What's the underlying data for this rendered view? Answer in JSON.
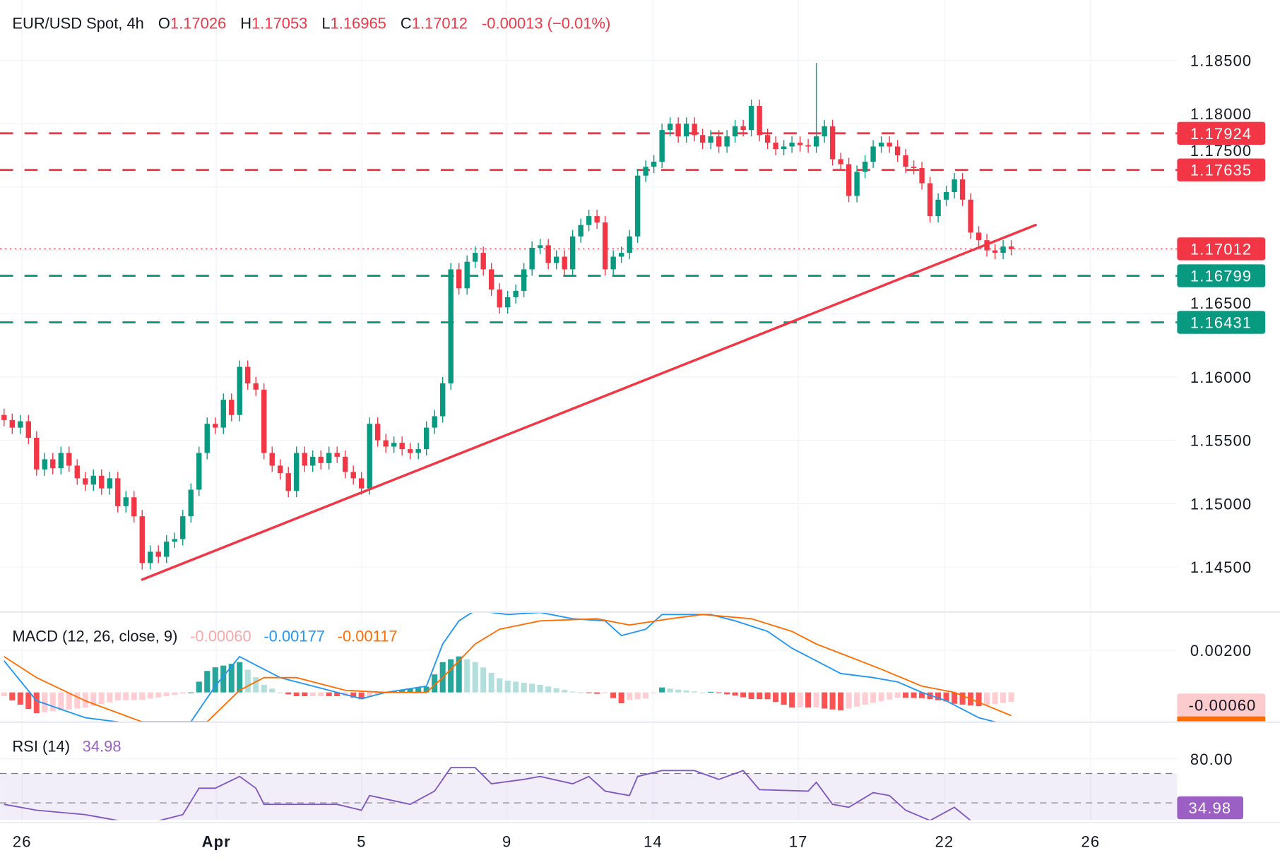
{
  "header": {
    "symbol": "EUR/USD Spot, 4h",
    "o_label": "O",
    "o_value": "1.17026",
    "h_label": "H",
    "h_value": "1.17053",
    "l_label": "L",
    "l_value": "1.16965",
    "c_label": "C",
    "c_value": "1.17012",
    "change": "-0.00013 (−0.01%)"
  },
  "colors": {
    "up": "#089981",
    "down": "#F23645",
    "macd": "#2196F3",
    "signal": "#FF6D00",
    "rsi": "#7E57C2",
    "grid": "#F0F3FA",
    "separator": "#E0E3EB",
    "text": "#131722"
  },
  "chart_data": [
    {
      "type": "candlestick",
      "title": "EUR/USD Spot, 4h",
      "ylim": [
        1.1415,
        1.1875
      ],
      "y_ticks": [
        "1.18500",
        "1.18000",
        "1.17500",
        "1.16500",
        "1.16000",
        "1.15500",
        "1.15000",
        "1.14500"
      ],
      "x_ticks": [
        "26",
        "Apr",
        "5",
        "9",
        "14",
        "17",
        "22",
        "26"
      ],
      "grid": true,
      "close": [
        1.1566,
        1.156,
        1.1565,
        1.1552,
        1.1527,
        1.1535,
        1.1528,
        1.154,
        1.153,
        1.152,
        1.1515,
        1.1522,
        1.1512,
        1.152,
        1.1498,
        1.1505,
        1.149,
        1.1453,
        1.1462,
        1.1458,
        1.147,
        1.1472,
        1.149,
        1.1511,
        1.154,
        1.1563,
        1.156,
        1.1582,
        1.157,
        1.1608,
        1.1595,
        1.159,
        1.154,
        1.153,
        1.1524,
        1.151,
        1.154,
        1.153,
        1.1537,
        1.1532,
        1.154,
        1.1537,
        1.1525,
        1.152,
        1.1512,
        1.1563,
        1.155,
        1.1545,
        1.1548,
        1.1543,
        1.154,
        1.1543,
        1.156,
        1.1569,
        1.1595,
        1.1685,
        1.167,
        1.1691,
        1.1698,
        1.1685,
        1.1669,
        1.1655,
        1.1663,
        1.1668,
        1.1685,
        1.1702,
        1.1704,
        1.169,
        1.1695,
        1.1685,
        1.1711,
        1.172,
        1.1727,
        1.1722,
        1.1685,
        1.1695,
        1.1698,
        1.1711,
        1.1759,
        1.1766,
        1.177,
        1.1795,
        1.18,
        1.179,
        1.18,
        1.1791,
        1.1785,
        1.179,
        1.1782,
        1.179,
        1.1798,
        1.1795,
        1.1814,
        1.1791,
        1.1785,
        1.178,
        1.1782,
        1.1785,
        1.1783,
        1.1782,
        1.179,
        1.1798,
        1.1772,
        1.1768,
        1.1743,
        1.1762,
        1.177,
        1.1782,
        1.1785,
        1.1782,
        1.1775,
        1.1766,
        1.1765,
        1.1753,
        1.1727,
        1.174,
        1.1746,
        1.1756,
        1.174,
        1.1714,
        1.1708,
        1.17,
        1.1698,
        1.1703,
        1.1701
      ],
      "first_open": 1.157,
      "notable_high": {
        "bar": 100,
        "price": 1.1848
      },
      "trendline": {
        "from": {
          "bar": 17,
          "price": 1.144
        },
        "to": {
          "bar": 127,
          "price": 1.172
        },
        "color": "#F23645"
      },
      "levels": [
        {
          "label": "1.17924",
          "price": 1.17924,
          "color": "#F23645",
          "style": "dashed"
        },
        {
          "label": "1.17635",
          "price": 1.17635,
          "color": "#F23645",
          "style": "dashed"
        },
        {
          "label": "1.17012",
          "price": 1.17012,
          "color": "#F23645",
          "style": "dotted"
        },
        {
          "label": "1.16799",
          "price": 1.16799,
          "color": "#089981",
          "style": "dashed"
        },
        {
          "label": "1.16431",
          "price": 1.16431,
          "color": "#089981",
          "style": "dashed"
        }
      ]
    },
    {
      "type": "line",
      "title": "MACD (12, 26, close, 9)",
      "legend_values": {
        "histogram": "-0.00060",
        "macd": "-0.00177",
        "signal": "-0.00117"
      },
      "ylim": [
        -0.00141,
        0.00382
      ],
      "y_ticks": [
        "0.00200"
      ],
      "last_label": "-0.00060",
      "macd": [
        [
          0,
          0.0015
        ],
        [
          4,
          -0.0004
        ],
        [
          10,
          -0.0012
        ],
        [
          14,
          -0.0014
        ],
        [
          17,
          -0.0018
        ],
        [
          23,
          -0.0014
        ],
        [
          26,
          0.0003
        ],
        [
          29,
          0.0017
        ],
        [
          31,
          0.0013
        ],
        [
          34,
          0.0007
        ],
        [
          40,
          0.0001
        ],
        [
          44,
          -0.0003
        ],
        [
          47,
          0.0
        ],
        [
          52,
          0.0003
        ],
        [
          54,
          0.0023
        ],
        [
          56,
          0.0034
        ],
        [
          58,
          0.0039
        ],
        [
          62,
          0.0037
        ],
        [
          66,
          0.0038
        ],
        [
          70,
          0.0035
        ],
        [
          74,
          0.0034
        ],
        [
          76,
          0.0027
        ],
        [
          79,
          0.003
        ],
        [
          81,
          0.0037
        ],
        [
          87,
          0.0037
        ],
        [
          90,
          0.0034
        ],
        [
          94,
          0.0029
        ],
        [
          97,
          0.0021
        ],
        [
          100,
          0.0015
        ],
        [
          103,
          0.0009
        ],
        [
          107,
          0.0007
        ],
        [
          110,
          0.0005
        ],
        [
          113,
          0.0
        ],
        [
          116,
          -0.0004
        ],
        [
          120,
          -0.0012
        ],
        [
          124,
          -0.0016
        ]
      ],
      "signal": [
        [
          0,
          0.0017
        ],
        [
          4,
          0.0007
        ],
        [
          10,
          -0.0004
        ],
        [
          17,
          -0.0014
        ],
        [
          25,
          -0.0014
        ],
        [
          29,
          0.0001
        ],
        [
          32,
          0.0007
        ],
        [
          36,
          0.0007
        ],
        [
          42,
          0.0001
        ],
        [
          47,
          0.0
        ],
        [
          52,
          0.0
        ],
        [
          54,
          0.0007
        ],
        [
          58,
          0.0023
        ],
        [
          61,
          0.003
        ],
        [
          66,
          0.0034
        ],
        [
          73,
          0.0035
        ],
        [
          77,
          0.0032
        ],
        [
          82,
          0.0035
        ],
        [
          86,
          0.0037
        ],
        [
          92,
          0.0035
        ],
        [
          97,
          0.0029
        ],
        [
          100,
          0.0023
        ],
        [
          104,
          0.0017
        ],
        [
          108,
          0.0011
        ],
        [
          113,
          0.0003
        ],
        [
          117,
          0.0
        ],
        [
          124,
          -0.0011
        ]
      ]
    },
    {
      "type": "line",
      "title": "RSI (14)",
      "legend_value": "34.98",
      "ylim": [
        36,
        90
      ],
      "y_ticks": [
        "80.00"
      ],
      "bands": [
        70,
        50,
        30
      ],
      "last_label": "34.98",
      "rsi": [
        [
          0,
          49
        ],
        [
          4,
          45
        ],
        [
          10,
          42
        ],
        [
          17,
          35
        ],
        [
          22,
          42
        ],
        [
          24,
          60
        ],
        [
          26,
          60
        ],
        [
          29,
          68
        ],
        [
          31,
          60
        ],
        [
          32,
          49
        ],
        [
          37,
          49
        ],
        [
          41,
          49
        ],
        [
          44,
          45
        ],
        [
          45,
          55
        ],
        [
          50,
          49
        ],
        [
          53,
          58
        ],
        [
          55,
          74
        ],
        [
          58,
          74
        ],
        [
          60,
          63
        ],
        [
          64,
          66
        ],
        [
          66,
          68
        ],
        [
          70,
          63
        ],
        [
          72,
          68
        ],
        [
          74,
          58
        ],
        [
          77,
          55
        ],
        [
          78,
          68
        ],
        [
          81,
          72
        ],
        [
          85,
          72
        ],
        [
          88,
          66
        ],
        [
          91,
          72
        ],
        [
          93,
          59
        ],
        [
          99,
          58
        ],
        [
          100,
          64
        ],
        [
          102,
          49
        ],
        [
          104,
          47
        ],
        [
          107,
          57
        ],
        [
          109,
          55
        ],
        [
          111,
          45
        ],
        [
          114,
          38
        ],
        [
          117,
          47
        ],
        [
          119,
          38
        ],
        [
          124,
          35
        ]
      ]
    }
  ]
}
